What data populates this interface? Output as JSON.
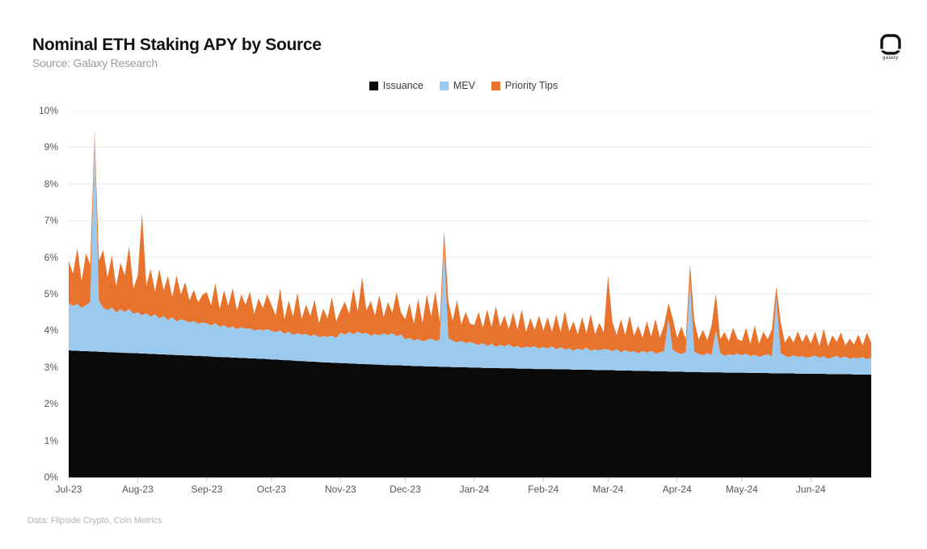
{
  "header": {
    "title": "Nominal ETH Staking APY by Source",
    "source": "Source: Galaxy Research",
    "logo_text": "galaxy"
  },
  "footer": {
    "text": "Data: Flipside Crypto, Coin Metrics"
  },
  "colors": {
    "issuance": "#0a0a0a",
    "mev": "#9ccaef",
    "priority_tips": "#e8732c",
    "gridline": "#e9e9e9",
    "axis": "#999999",
    "tick": "#c4c4c4"
  },
  "chart_data": {
    "type": "area",
    "stacked": true,
    "title": "Nominal ETH Staking APY by Source",
    "xlabel": "",
    "ylabel": "",
    "unit": "% APY (stacked band thickness per series)",
    "ylim": [
      0,
      10
    ],
    "grid": true,
    "legend_position": "top",
    "y_ticks": [
      "0%",
      "1%",
      "2%",
      "3%",
      "4%",
      "5%",
      "6%",
      "7%",
      "8%",
      "9%",
      "10%"
    ],
    "x_tick_labels": [
      "Jul-23",
      "Aug-23",
      "Sep-23",
      "Oct-23",
      "Nov-23",
      "Dec-23",
      "Jan-24",
      "Feb-24",
      "Mar-24",
      "Apr-24",
      "May-24",
      "Jun-24"
    ],
    "x_tick_indices": [
      0,
      16,
      32,
      47,
      63,
      78,
      94,
      110,
      125,
      141,
      156,
      172
    ],
    "n_points": 187,
    "series": [
      {
        "name": "Issuance",
        "color": "#0a0a0a",
        "values": [
          3.46,
          3.45,
          3.45,
          3.44,
          3.44,
          3.43,
          3.43,
          3.42,
          3.42,
          3.41,
          3.41,
          3.4,
          3.4,
          3.39,
          3.39,
          3.38,
          3.38,
          3.37,
          3.37,
          3.36,
          3.36,
          3.35,
          3.35,
          3.34,
          3.34,
          3.33,
          3.33,
          3.32,
          3.32,
          3.31,
          3.31,
          3.3,
          3.3,
          3.29,
          3.28,
          3.28,
          3.27,
          3.27,
          3.26,
          3.26,
          3.25,
          3.25,
          3.24,
          3.24,
          3.23,
          3.23,
          3.22,
          3.21,
          3.21,
          3.2,
          3.19,
          3.19,
          3.18,
          3.17,
          3.17,
          3.16,
          3.15,
          3.15,
          3.14,
          3.13,
          3.13,
          3.12,
          3.12,
          3.11,
          3.11,
          3.1,
          3.1,
          3.09,
          3.09,
          3.08,
          3.08,
          3.07,
          3.07,
          3.06,
          3.06,
          3.05,
          3.05,
          3.05,
          3.04,
          3.04,
          3.03,
          3.03,
          3.03,
          3.02,
          3.02,
          3.02,
          3.01,
          3.01,
          3.01,
          3.0,
          3.0,
          3.0,
          3.0,
          2.99,
          2.99,
          2.99,
          2.98,
          2.98,
          2.98,
          2.98,
          2.97,
          2.97,
          2.97,
          2.97,
          2.96,
          2.96,
          2.96,
          2.96,
          2.95,
          2.95,
          2.95,
          2.95,
          2.95,
          2.94,
          2.94,
          2.94,
          2.94,
          2.93,
          2.93,
          2.93,
          2.93,
          2.93,
          2.92,
          2.92,
          2.92,
          2.92,
          2.92,
          2.91,
          2.91,
          2.91,
          2.91,
          2.9,
          2.9,
          2.9,
          2.9,
          2.89,
          2.89,
          2.89,
          2.89,
          2.88,
          2.88,
          2.88,
          2.88,
          2.87,
          2.87,
          2.87,
          2.87,
          2.86,
          2.86,
          2.86,
          2.86,
          2.86,
          2.85,
          2.85,
          2.85,
          2.85,
          2.85,
          2.85,
          2.84,
          2.84,
          2.84,
          2.84,
          2.84,
          2.83,
          2.83,
          2.83,
          2.83,
          2.83,
          2.83,
          2.82,
          2.82,
          2.82,
          2.82,
          2.82,
          2.82,
          2.82,
          2.81,
          2.81,
          2.81,
          2.81,
          2.81,
          2.81,
          2.8,
          2.8,
          2.8,
          2.8,
          2.8
        ]
      },
      {
        "name": "MEV",
        "color": "#9ccaef",
        "values": [
          1.3,
          1.22,
          1.28,
          1.18,
          1.25,
          1.35,
          5.85,
          1.4,
          1.2,
          1.15,
          1.22,
          1.1,
          1.18,
          1.12,
          1.2,
          1.08,
          1.12,
          1.05,
          1.1,
          1.02,
          1.08,
          0.98,
          1.05,
          0.95,
          1.02,
          0.92,
          0.98,
          0.95,
          0.9,
          0.95,
          0.88,
          0.92,
          0.9,
          0.85,
          0.92,
          0.82,
          0.88,
          0.8,
          0.85,
          0.78,
          0.84,
          0.8,
          0.82,
          0.76,
          0.8,
          0.78,
          0.82,
          0.78,
          0.75,
          0.8,
          0.72,
          0.78,
          0.7,
          0.76,
          0.72,
          0.75,
          0.7,
          0.74,
          0.68,
          0.72,
          0.7,
          0.74,
          0.68,
          0.83,
          0.78,
          0.86,
          0.8,
          0.88,
          0.82,
          0.86,
          0.78,
          0.84,
          0.8,
          0.86,
          0.82,
          0.88,
          0.8,
          0.84,
          0.72,
          0.76,
          0.7,
          0.74,
          0.68,
          0.72,
          0.76,
          0.7,
          0.74,
          3.3,
          0.78,
          0.72,
          0.68,
          0.72,
          0.66,
          0.7,
          0.66,
          0.62,
          0.68,
          0.6,
          0.66,
          0.58,
          0.64,
          0.6,
          0.66,
          0.58,
          0.62,
          0.56,
          0.6,
          0.58,
          0.62,
          0.56,
          0.6,
          0.56,
          0.62,
          0.55,
          0.6,
          0.54,
          0.58,
          0.52,
          0.58,
          0.54,
          0.6,
          0.52,
          0.56,
          0.54,
          0.58,
          0.56,
          0.52,
          0.58,
          0.5,
          0.56,
          0.5,
          0.54,
          0.48,
          0.54,
          0.5,
          0.56,
          0.48,
          0.52,
          0.55,
          1.45,
          0.6,
          0.52,
          0.48,
          0.54,
          2.48,
          0.55,
          0.5,
          0.46,
          0.52,
          0.48,
          1.15,
          0.52,
          0.46,
          0.5,
          0.48,
          0.52,
          0.48,
          0.52,
          0.46,
          0.5,
          0.44,
          0.48,
          0.52,
          0.46,
          2.07,
          0.55,
          0.48,
          0.44,
          0.5,
          0.46,
          0.48,
          0.44,
          0.46,
          0.5,
          0.44,
          0.48,
          0.42,
          0.46,
          0.5,
          0.44,
          0.48,
          0.42,
          0.46,
          0.44,
          0.48,
          0.42,
          0.46
        ]
      },
      {
        "name": "Priority Tips",
        "color": "#e8732c",
        "values": [
          1.14,
          0.88,
          1.52,
          0.73,
          1.41,
          1.02,
          0.17,
          1.08,
          1.58,
          0.89,
          1.42,
          0.7,
          1.27,
          0.99,
          1.71,
          0.69,
          1.0,
          2.78,
          0.75,
          1.3,
          0.62,
          1.35,
          0.7,
          1.2,
          0.55,
          1.25,
          0.68,
          1.05,
          0.6,
          0.85,
          0.58,
          0.75,
          0.85,
          0.55,
          1.1,
          0.48,
          0.95,
          0.6,
          1.05,
          0.5,
          0.9,
          0.65,
          1.0,
          0.45,
          0.85,
          0.6,
          0.95,
          0.7,
          0.45,
          1.15,
          0.4,
          0.85,
          0.5,
          1.1,
          0.42,
          0.8,
          0.55,
          0.95,
          0.38,
          0.75,
          0.5,
          1.05,
          0.45,
          0.6,
          0.9,
          0.5,
          1.25,
          0.55,
          1.55,
          0.6,
          0.95,
          0.5,
          1.1,
          0.45,
          0.9,
          0.55,
          1.2,
          0.6,
          0.55,
          0.95,
          0.45,
          1.1,
          0.5,
          1.25,
          0.6,
          1.35,
          0.48,
          0.4,
          1.0,
          0.55,
          1.15,
          0.45,
          0.85,
          0.5,
          0.5,
          0.9,
          0.42,
          1.0,
          0.45,
          1.1,
          0.5,
          0.85,
          0.4,
          0.95,
          0.45,
          1.05,
          0.4,
          0.8,
          0.45,
          0.9,
          0.45,
          0.85,
          0.4,
          0.95,
          0.42,
          1.05,
          0.45,
          0.8,
          0.38,
          0.9,
          0.4,
          1.0,
          0.42,
          0.75,
          0.45,
          2.02,
          0.8,
          0.38,
          0.9,
          0.4,
          1.0,
          0.42,
          0.75,
          0.36,
          0.85,
          0.38,
          0.95,
          0.4,
          0.7,
          0.42,
          0.85,
          0.4,
          0.75,
          0.36,
          0.45,
          0.85,
          0.38,
          0.7,
          0.35,
          0.8,
          1.0,
          0.38,
          0.65,
          0.36,
          0.75,
          0.4,
          0.38,
          0.7,
          0.34,
          0.8,
          0.36,
          0.65,
          0.4,
          0.75,
          0.3,
          0.85,
          0.36,
          0.6,
          0.34,
          0.7,
          0.38,
          0.65,
          0.36,
          0.65,
          0.32,
          0.75,
          0.34,
          0.6,
          0.38,
          0.7,
          0.3,
          0.55,
          0.36,
          0.65,
          0.32,
          0.72,
          0.4
        ]
      }
    ]
  }
}
